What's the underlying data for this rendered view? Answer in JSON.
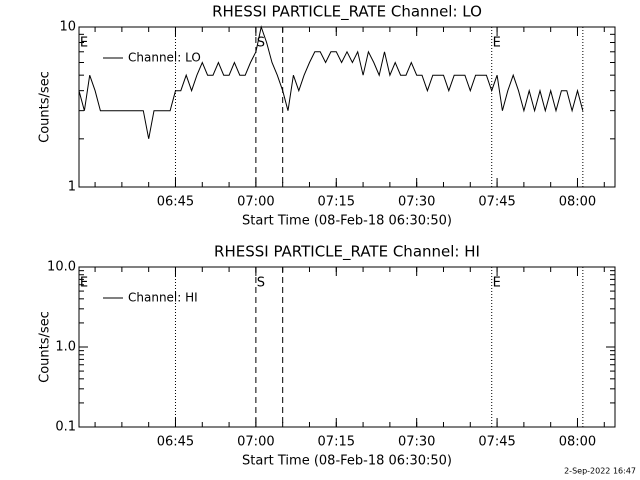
{
  "chart_data": [
    {
      "type": "line",
      "log": true,
      "title": "RHESSI PARTICLE_RATE Channel: LO",
      "xlabel": "Start Time (08-Feb-18 06:30:50)",
      "ylabel": "Counts/sec",
      "xlim": [
        "06:27",
        "08:07"
      ],
      "xticks": [
        "06:45",
        "07:00",
        "07:15",
        "07:30",
        "07:45",
        "08:00"
      ],
      "ylim": [
        1,
        10
      ],
      "yticks": [
        1,
        10
      ],
      "legend": "upper left",
      "x": [
        "06:27",
        "06:28",
        "06:29",
        "06:30",
        "06:31",
        "06:32",
        "06:33",
        "06:34",
        "06:35",
        "06:36",
        "06:37",
        "06:38",
        "06:39",
        "06:40",
        "06:41",
        "06:42",
        "06:43",
        "06:44",
        "06:45",
        "06:46",
        "06:47",
        "06:48",
        "06:49",
        "06:50",
        "06:51",
        "06:52",
        "06:53",
        "06:54",
        "06:55",
        "06:56",
        "06:57",
        "06:58",
        "06:59",
        "07:00",
        "07:01",
        "07:02",
        "07:03",
        "07:04",
        "07:05",
        "07:06",
        "07:07",
        "07:08",
        "07:09",
        "07:10",
        "07:11",
        "07:12",
        "07:13",
        "07:14",
        "07:15",
        "07:16",
        "07:17",
        "07:18",
        "07:19",
        "07:20",
        "07:21",
        "07:22",
        "07:23",
        "07:24",
        "07:25",
        "07:26",
        "07:27",
        "07:28",
        "07:29",
        "07:30",
        "07:31",
        "07:32",
        "07:33",
        "07:34",
        "07:35",
        "07:36",
        "07:37",
        "07:38",
        "07:39",
        "07:40",
        "07:41",
        "07:42",
        "07:43",
        "07:44",
        "07:45",
        "07:46",
        "07:47",
        "07:48",
        "07:49",
        "07:50",
        "07:51",
        "07:52",
        "07:53",
        "07:54",
        "07:55",
        "07:56",
        "07:57",
        "07:58",
        "07:59",
        "08:00",
        "08:01"
      ],
      "series": [
        {
          "name": "Channel: LO",
          "color": "#000000",
          "values": [
            4,
            3,
            5,
            4,
            3,
            3,
            3,
            3,
            3,
            3,
            3,
            3,
            3,
            2,
            3,
            3,
            3,
            3,
            4,
            4,
            5,
            4,
            5,
            6,
            5,
            5,
            6,
            5,
            5,
            6,
            5,
            5,
            6,
            7,
            10,
            8,
            6,
            5,
            4,
            3,
            5,
            4,
            5,
            6,
            7,
            7,
            6,
            7,
            7,
            6,
            7,
            6,
            7,
            5,
            7,
            6,
            5,
            7,
            5,
            6,
            5,
            5,
            6,
            5,
            5,
            4,
            5,
            5,
            5,
            4,
            5,
            5,
            5,
            4,
            5,
            5,
            5,
            4,
            5,
            3,
            4,
            5,
            4,
            3,
            4,
            3,
            4,
            3,
            4,
            3,
            4,
            4,
            3,
            4,
            3
          ]
        }
      ],
      "vlines": [
        {
          "x": "06:45",
          "style": "dotted"
        },
        {
          "x": "07:00",
          "style": "dashed"
        },
        {
          "x": "07:05",
          "style": "dashed"
        },
        {
          "x": "07:44",
          "style": "dotted"
        },
        {
          "x": "08:01",
          "style": "dotted"
        }
      ],
      "annotations": [
        {
          "text": "E",
          "x": "06:27"
        },
        {
          "text": "S",
          "x": "07:00"
        },
        {
          "text": "E",
          "x": "07:44"
        }
      ]
    },
    {
      "type": "line",
      "log": true,
      "title": "RHESSI PARTICLE_RATE Channel: HI",
      "xlabel": "Start Time (08-Feb-18 06:30:50)",
      "ylabel": "Counts/sec",
      "xlim": [
        "06:27",
        "08:07"
      ],
      "xticks": [
        "06:45",
        "07:00",
        "07:15",
        "07:30",
        "07:45",
        "08:00"
      ],
      "ylim": [
        0.1,
        10
      ],
      "yticks": [
        0.1,
        {
          "value": 1,
          "label": "1.0"
        },
        {
          "value": 10,
          "label": "10.0"
        }
      ],
      "legend": "upper left",
      "x": [],
      "series": [
        {
          "name": "Channel: HI",
          "color": "#000000",
          "values": []
        }
      ],
      "vlines": [
        {
          "x": "06:45",
          "style": "dotted"
        },
        {
          "x": "07:00",
          "style": "dashed"
        },
        {
          "x": "07:05",
          "style": "dashed"
        },
        {
          "x": "07:44",
          "style": "dotted"
        },
        {
          "x": "08:01",
          "style": "dotted"
        }
      ],
      "annotations": [
        {
          "text": "E",
          "x": "06:27"
        },
        {
          "text": "S",
          "x": "07:00"
        },
        {
          "text": "E",
          "x": "07:44"
        }
      ]
    }
  ],
  "footer": "2-Sep-2022 16:47"
}
